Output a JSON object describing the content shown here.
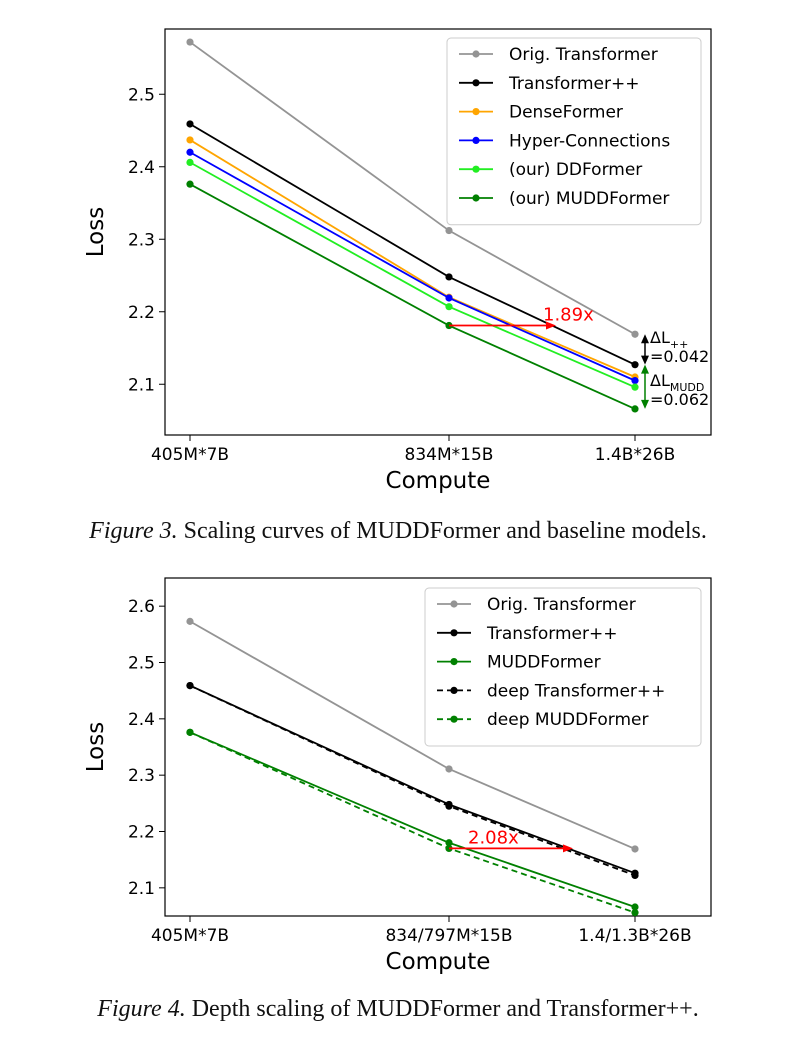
{
  "figures": [
    {
      "label": "Figure 3.",
      "caption": "Scaling curves of MUDDFormer and baseline models."
    },
    {
      "label": "Figure 4.",
      "caption": "Depth scaling of MUDDFormer and Transformer++."
    }
  ],
  "chart_data": [
    {
      "type": "line",
      "xlabel": "Compute",
      "ylabel": "Loss",
      "categories": [
        "405M*7B",
        "834M*15B",
        "1.4B*26B"
      ],
      "ylim": [
        2.03,
        2.59
      ],
      "yticks": [
        "2.1",
        "2.2",
        "2.3",
        "2.4",
        "2.5"
      ],
      "legend_position": "top-right",
      "series": [
        {
          "name": "Orig. Transformer",
          "color": "#949494",
          "dash": false,
          "values": [
            2.572,
            2.312,
            2.169
          ]
        },
        {
          "name": "Transformer++",
          "color": "#000000",
          "dash": false,
          "values": [
            2.459,
            2.248,
            2.127
          ]
        },
        {
          "name": "DenseFormer",
          "color": "#ffa500",
          "dash": false,
          "values": [
            2.437,
            2.22,
            2.11
          ]
        },
        {
          "name": "Hyper-Connections",
          "color": "#0000ff",
          "dash": false,
          "values": [
            2.42,
            2.219,
            2.105
          ]
        },
        {
          "name": "(our) DDFormer",
          "color": "#22ee22",
          "dash": false,
          "values": [
            2.406,
            2.207,
            2.096
          ]
        },
        {
          "name": "(our) MUDDFormer",
          "color": "#008000",
          "dash": false,
          "values": [
            2.376,
            2.181,
            2.066
          ]
        }
      ],
      "annotations": [
        {
          "text": "1.89x",
          "color": "#ff0000"
        },
        {
          "text": "ΔL",
          "sub": "++",
          "value": "=0.042",
          "color": "#000000"
        },
        {
          "text": "ΔL",
          "sub": "MUDD",
          "value": "=0.062",
          "color": "#008000"
        }
      ]
    },
    {
      "type": "line",
      "xlabel": "Compute",
      "ylabel": "Loss",
      "categories": [
        "405M*7B",
        "834/797M*15B",
        "1.4/1.3B*26B"
      ],
      "ylim": [
        2.05,
        2.65
      ],
      "yticks": [
        "2.1",
        "2.2",
        "2.3",
        "2.4",
        "2.5",
        "2.6"
      ],
      "legend_position": "top-right",
      "series": [
        {
          "name": "Orig. Transformer",
          "color": "#949494",
          "dash": false,
          "values": [
            2.573,
            2.311,
            2.169
          ]
        },
        {
          "name": "Transformer++",
          "color": "#000000",
          "dash": false,
          "values": [
            2.459,
            2.248,
            2.126
          ]
        },
        {
          "name": "MUDDFormer",
          "color": "#008000",
          "dash": false,
          "values": [
            2.376,
            2.18,
            2.066
          ]
        },
        {
          "name": "deep Transformer++",
          "color": "#000000",
          "dash": true,
          "values": [
            2.459,
            2.245,
            2.122
          ]
        },
        {
          "name": "deep MUDDFormer",
          "color": "#008000",
          "dash": true,
          "values": [
            2.376,
            2.17,
            2.056
          ]
        }
      ],
      "annotations": [
        {
          "text": "2.08x",
          "color": "#ff0000"
        }
      ]
    }
  ]
}
